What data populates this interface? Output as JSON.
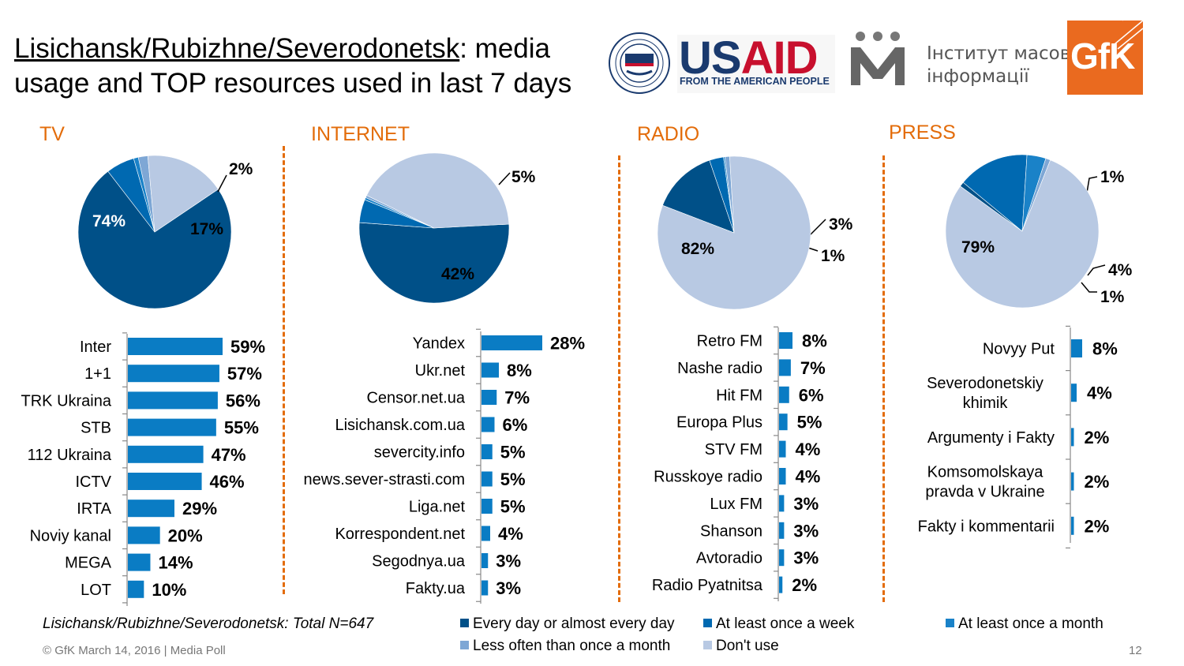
{
  "title": {
    "underlined": "Lisichansk/Rubizhne/Severodonetsk",
    "line1_rest": ": media",
    "line2": "usage and TOP resources used in last 7 days"
  },
  "logos": {
    "usaid_word": "USAID",
    "usaid_sub": "FROM THE AMERICAN PEOPLE",
    "imi_line1": "Інститут масової",
    "imi_line2": "інформації",
    "gfk": "GfK"
  },
  "sections": [
    "TV",
    "INTERNET",
    "RADIO",
    "PRESS"
  ],
  "colors": {
    "every_day": "#005088",
    "once_week": "#0069b1",
    "once_month": "#1a82c8",
    "less_often": "#7ea7d5",
    "dont_use": "#b8c9e3",
    "bar": "#0a7cc4",
    "accent": "#e36c0a"
  },
  "chart_data": [
    {
      "type": "pie",
      "title": "TV",
      "slices": [
        {
          "category": "Every day or almost every day",
          "value": 74,
          "label": "74%"
        },
        {
          "category": "At least once a week",
          "value": 6,
          "label": "6%"
        },
        {
          "category": "At least once a month",
          "value": 1,
          "label": ""
        },
        {
          "category": "Less often than once a month",
          "value": 2,
          "label": "2%"
        },
        {
          "category": "Don't use",
          "value": 17,
          "label": "17%"
        }
      ]
    },
    {
      "type": "bar",
      "orientation": "horizontal",
      "section": "TV",
      "categories": [
        "Inter",
        "1+1",
        "TRK Ukraina",
        "STB",
        "112 Ukraina",
        "ICTV",
        "IRTA",
        "Noviy kanal",
        "MEGA",
        "LOT"
      ],
      "values": [
        59,
        57,
        56,
        55,
        47,
        46,
        29,
        20,
        14,
        10
      ],
      "labels": [
        "59%",
        "57%",
        "56%",
        "55%",
        "47%",
        "46%",
        "29%",
        "20%",
        "14%",
        "10%"
      ]
    },
    {
      "type": "pie",
      "title": "INTERNET",
      "slices": [
        {
          "category": "Every day or almost every day",
          "value": 52,
          "label": "52%"
        },
        {
          "category": "At least once a week",
          "value": 5,
          "label": "5%"
        },
        {
          "category": "At least once a month",
          "value": 0.5,
          "label": ""
        },
        {
          "category": "Less often than once a month",
          "value": 0.5,
          "label": ""
        },
        {
          "category": "Don't use",
          "value": 42,
          "label": "42%"
        }
      ]
    },
    {
      "type": "bar",
      "orientation": "horizontal",
      "section": "INTERNET",
      "categories": [
        "Yandex",
        "Ukr.net",
        "Censor.net.ua",
        "Lisichansk.com.ua",
        "severcity.info",
        "news.sever-strasti.com",
        "Liga.net",
        "Korrespondent.net",
        "Segodnya.ua",
        "Fakty.ua"
      ],
      "values": [
        28,
        8,
        7,
        6,
        5,
        5,
        5,
        4,
        3,
        3
      ],
      "labels": [
        "28%",
        "8%",
        "7%",
        "6%",
        "5%",
        "5%",
        "5%",
        "4%",
        "3%",
        "3%"
      ]
    },
    {
      "type": "pie",
      "title": "RADIO",
      "slices": [
        {
          "category": "Every day or almost every day",
          "value": 14,
          "label": "14%"
        },
        {
          "category": "At least once a week",
          "value": 3,
          "label": "3%"
        },
        {
          "category": "At least once a month",
          "value": 0.3,
          "label": ""
        },
        {
          "category": "Less often than once a month",
          "value": 1,
          "label": "1%"
        },
        {
          "category": "Don't use",
          "value": 82,
          "label": "82%"
        }
      ]
    },
    {
      "type": "bar",
      "orientation": "horizontal",
      "section": "RADIO",
      "categories": [
        "Retro FM",
        "Nashe radio",
        "Hit FM",
        "Europa Plus",
        "STV FM",
        "Russkoye radio",
        "Lux FM",
        "Shanson",
        "Avtoradio",
        "Radio Pyatnitsa"
      ],
      "values": [
        8,
        7,
        6,
        5,
        4,
        4,
        3,
        3,
        3,
        2
      ],
      "labels": [
        "8%",
        "7%",
        "6%",
        "5%",
        "4%",
        "4%",
        "3%",
        "3%",
        "3%",
        "2%"
      ]
    },
    {
      "type": "pie",
      "title": "PRESS",
      "slices": [
        {
          "category": "Every day or almost every day",
          "value": 1,
          "label": "1%"
        },
        {
          "category": "At least once a week",
          "value": 15,
          "label": "15%"
        },
        {
          "category": "At least once a month",
          "value": 4,
          "label": "4%"
        },
        {
          "category": "Less often than once a month",
          "value": 1,
          "label": "1%"
        },
        {
          "category": "Don't use",
          "value": 79,
          "label": "79%"
        }
      ]
    },
    {
      "type": "bar",
      "orientation": "horizontal",
      "section": "PRESS",
      "categories": [
        [
          "Novyy Put"
        ],
        [
          "Severodonetskiy",
          "khimik"
        ],
        [
          "Argumenty i Fakty"
        ],
        [
          "Komsomolskaya",
          "pravda v Ukraine"
        ],
        [
          "Fakty i kommentarii"
        ]
      ],
      "values": [
        8,
        4,
        2,
        2,
        2
      ],
      "labels": [
        "8%",
        "4%",
        "2%",
        "2%",
        "2%"
      ]
    }
  ],
  "legend": [
    "Every day or almost every day",
    "At least once a week",
    "At least once a month",
    "Less often than once a month",
    "Don't use"
  ],
  "footnote": "Lisichansk/Rubizhne/Severodonetsk: Total N=647",
  "footer": "© GfK March 14, 2016 | Media Poll",
  "page_number": "12"
}
